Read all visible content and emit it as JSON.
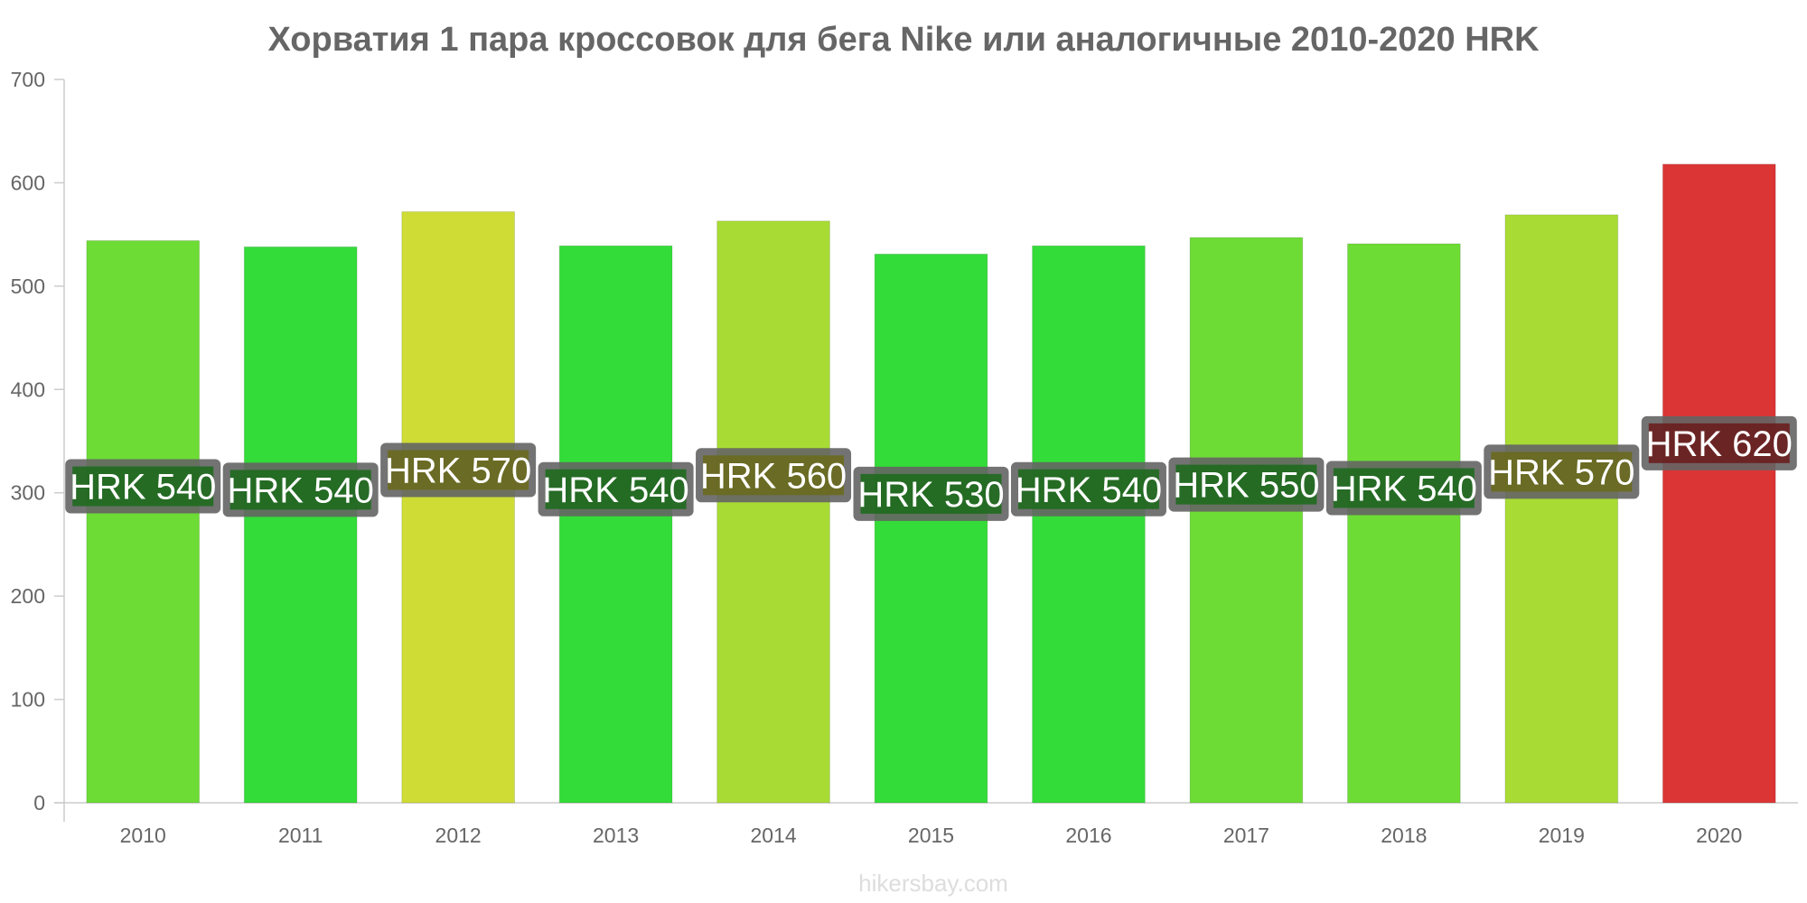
{
  "chart_data": {
    "type": "bar",
    "title": "Хорватия 1 пара кроссовок для бега Nike или аналогичные 2010-2020 HRK",
    "xlabel": "",
    "ylabel": "",
    "ylim": [
      0,
      700
    ],
    "yticks": [
      0,
      100,
      200,
      300,
      400,
      500,
      600,
      700
    ],
    "categories": [
      "2010",
      "2011",
      "2012",
      "2013",
      "2014",
      "2015",
      "2016",
      "2017",
      "2018",
      "2019",
      "2020"
    ],
    "values": [
      544,
      538,
      572,
      539,
      563,
      531,
      539,
      547,
      541,
      569,
      618
    ],
    "data_labels": [
      "HRK 540",
      "HRK 540",
      "HRK 570",
      "HRK 540",
      "HRK 560",
      "HRK 530",
      "HRK 540",
      "HRK 550",
      "HRK 540",
      "HRK 570",
      "HRK 620"
    ],
    "colors": [
      "#6ddc35",
      "#33dc38",
      "#cedc35",
      "#33dc38",
      "#a8dc35",
      "#33dc38",
      "#33dc38",
      "#6ddc35",
      "#6ddc35",
      "#a8dc35",
      "#dc3535"
    ],
    "label_colors": [
      "#1a6a1a",
      "#1a6a1a",
      "#6a6a1a",
      "#1a6a1a",
      "#6a6a1a",
      "#1a6a1a",
      "#1a6a1a",
      "#1a6a1a",
      "#1a6a1a",
      "#6a6a1a",
      "#6a1a1a"
    ],
    "grid": false,
    "legend": "none"
  },
  "footer": {
    "credit": "hikersbay.com"
  }
}
